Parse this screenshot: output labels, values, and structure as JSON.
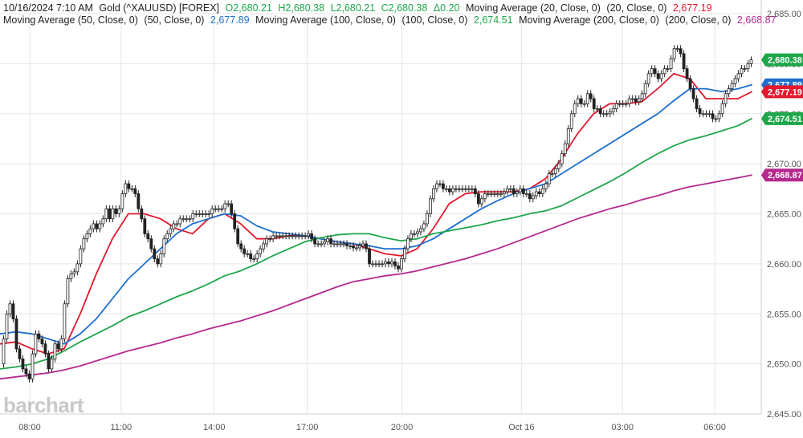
{
  "header": {
    "date": "10/16/2024 7:10 AM",
    "symbol": "Gold (^XAUUSD) [FOREX]",
    "open": "O2,680.21",
    "high": "H2,680.38",
    "low": "L2,680.21",
    "close": "C2,680.38",
    "change": "Δ0.20",
    "ma20_label": "Moving Average (20, Close, 0)",
    "ma20_params": "(20, Close, 0)",
    "ma20_value": "2,677.19",
    "ma50_label": "Moving Average (50, Close, 0)",
    "ma50_params": "(50, Close, 0)",
    "ma50_value": "2,677.89",
    "ma100_label": "Moving Average (100, Close, 0)",
    "ma100_params": "(100, Close, 0)",
    "ma100_value": "2,674.51",
    "ma200_label": "Moving Average (200, Close, 0)",
    "ma200_params": "(200, Close, 0)",
    "ma200_value": "2,668.87"
  },
  "watermark": "barchart",
  "colors": {
    "up": "#1ea64a",
    "candle": "#222222",
    "ma20": "#e3182d",
    "ma50": "#1f6fcf",
    "ma100": "#1ea64a",
    "ma200": "#b5298e",
    "grid": "#e6e6e6"
  },
  "chart_data": {
    "type": "line",
    "title": "Gold (^XAUUSD) [FOREX]",
    "ylim": [
      2645,
      2685
    ],
    "yticks": [
      "2,685.00",
      "2,680.00",
      "2,675.00",
      "2,670.00",
      "2,665.00",
      "2,660.00",
      "2,655.00",
      "2,650.00",
      "2,645.00"
    ],
    "ytick_values": [
      2685,
      2680,
      2675,
      2670,
      2665,
      2660,
      2655,
      2650,
      2645
    ],
    "xlim": [
      0,
      949
    ],
    "xticks": [
      "08:00",
      "11:00",
      "14:00",
      "17:00",
      "20:00",
      "Oct 16",
      "03:00",
      "06:00"
    ],
    "xtick_values": [
      37,
      151,
      267,
      383,
      501,
      650,
      776,
      891
    ],
    "grid": true,
    "value_labels": [
      {
        "text": "2,680.38",
        "value": 2680.38,
        "color": "#1ea64a",
        "series": "price"
      },
      {
        "text": "2,677.89",
        "value": 2677.89,
        "color": "#1f6fcf",
        "series": "ma50"
      },
      {
        "text": "2,677.19",
        "value": 2677.19,
        "color": "#e3182d",
        "series": "ma20"
      },
      {
        "text": "2,674.51",
        "value": 2674.51,
        "color": "#1ea64a",
        "series": "ma100"
      },
      {
        "text": "2,668.87",
        "value": 2668.87,
        "color": "#b5298e",
        "series": "ma200"
      }
    ],
    "price_path": [
      [
        2,
        2650.0
      ],
      [
        6,
        2652.5
      ],
      [
        10,
        2655.0
      ],
      [
        14,
        2656.0
      ],
      [
        18,
        2654.5
      ],
      [
        22,
        2651.5
      ],
      [
        26,
        2650.5
      ],
      [
        30,
        2649.5
      ],
      [
        34,
        2649.0
      ],
      [
        38,
        2648.5
      ],
      [
        42,
        2651.0
      ],
      [
        46,
        2653.0
      ],
      [
        50,
        2652.5
      ],
      [
        54,
        2652.0
      ],
      [
        58,
        2651.0
      ],
      [
        62,
        2649.5
      ],
      [
        66,
        2650.5
      ],
      [
        70,
        2652.0
      ],
      [
        74,
        2651.5
      ],
      [
        78,
        2652.5
      ],
      [
        82,
        2656.0
      ],
      [
        86,
        2658.5
      ],
      [
        90,
        2659.0
      ],
      [
        94,
        2659.2
      ],
      [
        98,
        2660.0
      ],
      [
        102,
        2661.5
      ],
      [
        106,
        2662.5
      ],
      [
        110,
        2663.0
      ],
      [
        114,
        2663.5
      ],
      [
        118,
        2664.0
      ],
      [
        122,
        2663.5
      ],
      [
        126,
        2664.0
      ],
      [
        130,
        2664.5
      ],
      [
        134,
        2665.5
      ],
      [
        138,
        2664.5
      ],
      [
        142,
        2665.5
      ],
      [
        146,
        2665.0
      ],
      [
        150,
        2665.5
      ],
      [
        154,
        2667.0
      ],
      [
        158,
        2668.0
      ],
      [
        162,
        2667.5
      ],
      [
        166,
        2667.5
      ],
      [
        170,
        2667.0
      ],
      [
        174,
        2665.5
      ],
      [
        178,
        2664.5
      ],
      [
        182,
        2663.0
      ],
      [
        186,
        2662.5
      ],
      [
        190,
        2661.5
      ],
      [
        194,
        2660.5
      ],
      [
        198,
        2660.0
      ],
      [
        202,
        2661.0
      ],
      [
        206,
        2662.5
      ],
      [
        210,
        2663.0
      ],
      [
        214,
        2663.5
      ],
      [
        218,
        2664.0
      ],
      [
        222,
        2664.0
      ],
      [
        226,
        2664.5
      ],
      [
        230,
        2664.5
      ],
      [
        234,
        2664.5
      ],
      [
        238,
        2664.5
      ],
      [
        242,
        2665.0
      ],
      [
        246,
        2665.0
      ],
      [
        250,
        2665.0
      ],
      [
        254,
        2665.0
      ],
      [
        258,
        2665.0
      ],
      [
        262,
        2665.0
      ],
      [
        266,
        2665.5
      ],
      [
        270,
        2665.5
      ],
      [
        274,
        2665.5
      ],
      [
        278,
        2665.5
      ],
      [
        282,
        2666.0
      ],
      [
        286,
        2666.0
      ],
      [
        290,
        2665.0
      ],
      [
        294,
        2663.5
      ],
      [
        298,
        2662.0
      ],
      [
        302,
        2661.5
      ],
      [
        306,
        2661.0
      ],
      [
        310,
        2661.0
      ],
      [
        314,
        2660.5
      ],
      [
        318,
        2660.5
      ],
      [
        322,
        2661.0
      ],
      [
        326,
        2661.5
      ],
      [
        330,
        2662.0
      ],
      [
        334,
        2662.5
      ],
      [
        338,
        2662.5
      ],
      [
        342,
        2662.8
      ],
      [
        346,
        2662.8
      ],
      [
        350,
        2662.8
      ],
      [
        354,
        2662.8
      ],
      [
        358,
        2662.8
      ],
      [
        362,
        2662.8
      ],
      [
        366,
        2662.8
      ],
      [
        370,
        2662.8
      ],
      [
        374,
        2662.8
      ],
      [
        378,
        2662.8
      ],
      [
        382,
        2662.8
      ],
      [
        386,
        2663.0
      ],
      [
        390,
        2662.5
      ],
      [
        394,
        2662.0
      ],
      [
        398,
        2662.0
      ],
      [
        402,
        2662.0
      ],
      [
        406,
        2662.2
      ],
      [
        410,
        2662.5
      ],
      [
        414,
        2662.0
      ],
      [
        418,
        2662.0
      ],
      [
        422,
        2662.0
      ],
      [
        426,
        2662.0
      ],
      [
        430,
        2662.0
      ],
      [
        434,
        2661.8
      ],
      [
        438,
        2661.8
      ],
      [
        442,
        2661.6
      ],
      [
        446,
        2661.6
      ],
      [
        450,
        2661.8
      ],
      [
        454,
        2662.0
      ],
      [
        458,
        2661.5
      ],
      [
        462,
        2660.0
      ],
      [
        466,
        2660.0
      ],
      [
        470,
        2660.0
      ],
      [
        474,
        2660.0
      ],
      [
        478,
        2660.0
      ],
      [
        482,
        2660.2
      ],
      [
        486,
        2660.0
      ],
      [
        490,
        2660.2
      ],
      [
        494,
        2659.8
      ],
      [
        498,
        2659.5
      ],
      [
        502,
        2660.5
      ],
      [
        506,
        2661.5
      ],
      [
        510,
        2662.5
      ],
      [
        514,
        2663.0
      ],
      [
        518,
        2663.0
      ],
      [
        522,
        2663.2
      ],
      [
        526,
        2663.5
      ],
      [
        530,
        2664.0
      ],
      [
        534,
        2665.0
      ],
      [
        538,
        2666.5
      ],
      [
        542,
        2667.5
      ],
      [
        546,
        2668.0
      ],
      [
        550,
        2668.0
      ],
      [
        554,
        2667.5
      ],
      [
        558,
        2667.5
      ],
      [
        562,
        2667.2
      ],
      [
        566,
        2667.5
      ],
      [
        570,
        2667.5
      ],
      [
        574,
        2667.5
      ],
      [
        578,
        2667.5
      ],
      [
        582,
        2667.5
      ],
      [
        586,
        2667.5
      ],
      [
        590,
        2667.5
      ],
      [
        594,
        2667.0
      ],
      [
        598,
        2666.0
      ],
      [
        602,
        2666.5
      ],
      [
        606,
        2667.0
      ],
      [
        610,
        2667.0
      ],
      [
        614,
        2667.0
      ],
      [
        618,
        2667.0
      ],
      [
        622,
        2667.0
      ],
      [
        626,
        2667.0
      ],
      [
        630,
        2667.2
      ],
      [
        634,
        2667.5
      ],
      [
        638,
        2667.5
      ],
      [
        642,
        2667.0
      ],
      [
        646,
        2667.2
      ],
      [
        650,
        2667.5
      ],
      [
        654,
        2667.0
      ],
      [
        658,
        2667.0
      ],
      [
        662,
        2666.5
      ],
      [
        666,
        2666.8
      ],
      [
        670,
        2667.2
      ],
      [
        674,
        2667.0
      ],
      [
        678,
        2667.5
      ],
      [
        682,
        2668.0
      ],
      [
        686,
        2669.0
      ],
      [
        690,
        2669.0
      ],
      [
        694,
        2669.5
      ],
      [
        698,
        2670.0
      ],
      [
        702,
        2671.0
      ],
      [
        706,
        2672.0
      ],
      [
        710,
        2673.5
      ],
      [
        714,
        2675.0
      ],
      [
        718,
        2676.0
      ],
      [
        722,
        2676.5
      ],
      [
        726,
        2676.0
      ],
      [
        730,
        2676.0
      ],
      [
        734,
        2677.0
      ],
      [
        738,
        2676.5
      ],
      [
        742,
        2675.5
      ],
      [
        746,
        2675.5
      ],
      [
        750,
        2675.0
      ],
      [
        754,
        2675.0
      ],
      [
        758,
        2675.0
      ],
      [
        762,
        2675.2
      ],
      [
        766,
        2675.5
      ],
      [
        770,
        2676.0
      ],
      [
        774,
        2676.0
      ],
      [
        778,
        2676.0
      ],
      [
        782,
        2676.0
      ],
      [
        786,
        2676.5
      ],
      [
        790,
        2676.5
      ],
      [
        794,
        2676.2
      ],
      [
        798,
        2676.5
      ],
      [
        802,
        2677.0
      ],
      [
        806,
        2678.0
      ],
      [
        810,
        2679.0
      ],
      [
        814,
        2679.5
      ],
      [
        818,
        2679.0
      ],
      [
        822,
        2678.5
      ],
      [
        826,
        2679.0
      ],
      [
        830,
        2679.5
      ],
      [
        834,
        2679.5
      ],
      [
        838,
        2680.5
      ],
      [
        842,
        2681.5
      ],
      [
        846,
        2681.5
      ],
      [
        850,
        2681.0
      ],
      [
        854,
        2679.5
      ],
      [
        858,
        2678.5
      ],
      [
        862,
        2677.5
      ],
      [
        866,
        2676.5
      ],
      [
        870,
        2675.5
      ],
      [
        874,
        2675.0
      ],
      [
        878,
        2675.0
      ],
      [
        882,
        2675.0
      ],
      [
        886,
        2675.0
      ],
      [
        890,
        2674.5
      ],
      [
        894,
        2674.5
      ],
      [
        898,
        2675.0
      ],
      [
        902,
        2676.0
      ],
      [
        906,
        2677.0
      ],
      [
        910,
        2677.5
      ],
      [
        914,
        2678.0
      ],
      [
        918,
        2678.5
      ],
      [
        922,
        2679.0
      ],
      [
        926,
        2679.5
      ],
      [
        930,
        2679.5
      ],
      [
        934,
        2680.0
      ],
      [
        938,
        2680.38
      ]
    ],
    "series": [
      {
        "name": "Moving Average (20, Close, 0)",
        "color": "#e3182d",
        "x": [
          0,
          20,
          40,
          60,
          80,
          100,
          120,
          140,
          160,
          180,
          200,
          220,
          240,
          260,
          280,
          300,
          320,
          340,
          360,
          380,
          400,
          420,
          440,
          460,
          480,
          500,
          520,
          540,
          560,
          580,
          600,
          620,
          640,
          660,
          680,
          700,
          720,
          740,
          760,
          780,
          800,
          820,
          840,
          860,
          880,
          900,
          920,
          937
        ],
        "values": [
          2652.0,
          2652.2,
          2651.5,
          2651.0,
          2651.5,
          2655.0,
          2659.0,
          2662.5,
          2665.0,
          2665.0,
          2664.5,
          2663.5,
          2663.0,
          2664.5,
          2665.0,
          2664.0,
          2662.5,
          2662.5,
          2662.8,
          2662.8,
          2662.5,
          2662.2,
          2662.0,
          2661.5,
          2661.0,
          2660.8,
          2661.5,
          2663.5,
          2666.0,
          2667.0,
          2667.2,
          2667.2,
          2667.2,
          2667.5,
          2668.5,
          2670.5,
          2673.0,
          2675.0,
          2676.0,
          2676.0,
          2676.2,
          2677.5,
          2679.0,
          2678.5,
          2676.5,
          2676.5,
          2676.5,
          2677.19
        ]
      },
      {
        "name": "Moving Average (50, Close, 0)",
        "color": "#1f6fcf",
        "x": [
          0,
          20,
          40,
          60,
          80,
          100,
          120,
          140,
          160,
          180,
          200,
          220,
          240,
          260,
          280,
          300,
          320,
          340,
          360,
          380,
          400,
          420,
          440,
          460,
          480,
          500,
          520,
          540,
          560,
          580,
          600,
          620,
          640,
          660,
          680,
          700,
          720,
          740,
          760,
          780,
          800,
          820,
          840,
          860,
          880,
          900,
          920,
          937
        ],
        "values": [
          2653.0,
          2653.2,
          2653.0,
          2652.5,
          2652.0,
          2653.0,
          2654.5,
          2656.5,
          2658.5,
          2660.0,
          2661.5,
          2663.0,
          2664.0,
          2664.5,
          2665.0,
          2664.8,
          2663.8,
          2663.2,
          2663.0,
          2662.8,
          2662.5,
          2662.2,
          2662.0,
          2661.8,
          2661.5,
          2661.5,
          2661.8,
          2662.5,
          2663.5,
          2664.5,
          2665.5,
          2666.3,
          2667.0,
          2667.5,
          2668.0,
          2669.0,
          2670.0,
          2671.0,
          2672.0,
          2673.0,
          2674.0,
          2675.0,
          2676.3,
          2677.5,
          2677.5,
          2677.2,
          2677.5,
          2677.89
        ]
      },
      {
        "name": "Moving Average (100, Close, 0)",
        "color": "#1ea64a",
        "x": [
          0,
          20,
          40,
          60,
          80,
          100,
          120,
          140,
          160,
          180,
          200,
          220,
          240,
          260,
          280,
          300,
          320,
          340,
          360,
          380,
          400,
          420,
          440,
          460,
          480,
          500,
          520,
          540,
          560,
          580,
          600,
          620,
          640,
          660,
          680,
          700,
          720,
          740,
          760,
          780,
          800,
          820,
          840,
          860,
          880,
          900,
          920,
          937
        ],
        "values": [
          2649.5,
          2649.7,
          2650.0,
          2650.5,
          2651.3,
          2652.2,
          2653.0,
          2653.8,
          2654.7,
          2655.3,
          2656.0,
          2656.7,
          2657.3,
          2658.0,
          2658.8,
          2659.3,
          2660.0,
          2660.8,
          2661.5,
          2662.2,
          2662.6,
          2662.9,
          2663.0,
          2663.0,
          2662.6,
          2662.3,
          2662.5,
          2663.0,
          2663.3,
          2663.6,
          2663.9,
          2664.3,
          2664.6,
          2665.0,
          2665.3,
          2665.8,
          2666.6,
          2667.4,
          2668.2,
          2669.1,
          2670.1,
          2671.0,
          2671.8,
          2672.4,
          2672.8,
          2673.3,
          2673.8,
          2674.51
        ]
      },
      {
        "name": "Moving Average (200, Close, 0)",
        "color": "#b5298e",
        "x": [
          0,
          20,
          40,
          60,
          80,
          100,
          120,
          140,
          160,
          180,
          200,
          220,
          240,
          260,
          280,
          300,
          320,
          340,
          360,
          380,
          400,
          420,
          440,
          460,
          480,
          500,
          520,
          540,
          560,
          580,
          600,
          620,
          640,
          660,
          680,
          700,
          720,
          740,
          760,
          780,
          800,
          820,
          840,
          860,
          880,
          900,
          920,
          937
        ],
        "values": [
          2648.5,
          2648.7,
          2648.9,
          2649.1,
          2649.4,
          2649.8,
          2650.3,
          2650.8,
          2651.3,
          2651.7,
          2652.1,
          2652.6,
          2653.0,
          2653.5,
          2653.9,
          2654.3,
          2654.8,
          2655.3,
          2655.9,
          2656.5,
          2657.1,
          2657.7,
          2658.2,
          2658.5,
          2658.8,
          2659.0,
          2659.3,
          2659.7,
          2660.1,
          2660.5,
          2661.0,
          2661.5,
          2662.1,
          2662.7,
          2663.3,
          2663.9,
          2664.5,
          2665.0,
          2665.5,
          2665.9,
          2666.4,
          2666.8,
          2667.3,
          2667.7,
          2668.0,
          2668.3,
          2668.6,
          2668.87
        ]
      }
    ]
  }
}
